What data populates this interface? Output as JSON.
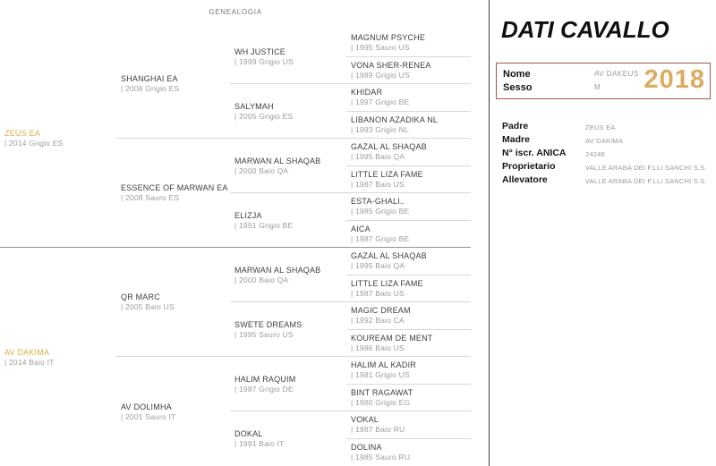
{
  "colors": {
    "highlight_gold": "#dcae47",
    "year_gold": "#dcab60",
    "id_box_border": "#a8544b",
    "divider_light": "#d8d8d8",
    "divider_mid": "#949494"
  },
  "genealogy": {
    "header": "GENEALOGIA",
    "generations": [
      {
        "span": 8,
        "items": [
          {
            "name": "ZEUS EA",
            "info": "| 2014 Grigio ES",
            "highlight": true
          },
          {
            "name": "AV DAKIMA",
            "info": "| 2014 Baio IT",
            "highlight": true
          }
        ]
      },
      {
        "span": 4,
        "items": [
          {
            "name": "SHANGHAI EA",
            "info": "| 2008 Grigio ES"
          },
          {
            "name": "ESSENCE OF MARWAN EA",
            "info": "| 2008 Sauro ES"
          },
          {
            "name": "QR MARC",
            "info": "| 2005 Baio US"
          },
          {
            "name": "AV DOLIMHA",
            "info": "| 2001 Sauro IT"
          }
        ]
      },
      {
        "span": 2,
        "items": [
          {
            "name": "WH JUSTICE",
            "info": "| 1999 Grigio US"
          },
          {
            "name": "SALYMAH",
            "info": "| 2005 Grigio ES"
          },
          {
            "name": "MARWAN AL SHAQAB",
            "info": "| 2000 Baio QA"
          },
          {
            "name": "ELIZJA",
            "info": "| 1991 Grigio BE"
          },
          {
            "name": "MARWAN AL SHAQAB",
            "info": "| 2000 Baio QA"
          },
          {
            "name": "SWETE DREAMS",
            "info": "| 1995 Sauro US"
          },
          {
            "name": "HALIM RAQUIM",
            "info": "| 1987 Grigio DE"
          },
          {
            "name": "DOKAL",
            "info": "| 1991 Baio IT"
          }
        ]
      },
      {
        "span": 1,
        "items": [
          {
            "name": "MAGNUM PSYCHE",
            "info": "| 1995 Sauro US"
          },
          {
            "name": "VONA SHER-RENEA",
            "info": "| 1989 Grigio US"
          },
          {
            "name": "KHIDAR",
            "info": "| 1997 Grigio BE"
          },
          {
            "name": "LIBANON AZADIKA NL",
            "info": "| 1993 Grigio NL"
          },
          {
            "name": "GAZAL AL SHAQAB",
            "info": "| 1995 Baio QA"
          },
          {
            "name": "LITTLE LIZA FAME",
            "info": "| 1987 Baio US"
          },
          {
            "name": "ESTA-GHALI..",
            "info": "| 1985 Grigio BE"
          },
          {
            "name": "AICA",
            "info": "| 1987 Grigio BE"
          },
          {
            "name": "GAZAL AL SHAQAB",
            "info": "| 1995 Baio QA"
          },
          {
            "name": "LITTLE LIZA FAME",
            "info": "| 1987 Baio US"
          },
          {
            "name": "MAGIC DREAM",
            "info": "| 1992 Baio CA"
          },
          {
            "name": "KOUREAM DE MENT",
            "info": "| 1986 Baio US"
          },
          {
            "name": "HALIM AL KADIR",
            "info": "| 1981 Grigio US"
          },
          {
            "name": "BINT RAGAWAT",
            "info": "| 1980 Grigio EG"
          },
          {
            "name": "VOKAL",
            "info": "| 1987 Baio RU"
          },
          {
            "name": "DOLINA",
            "info": "| 1985 Sauro RU"
          }
        ]
      }
    ]
  },
  "panel": {
    "title": "DATI CAVALLO",
    "id_box": {
      "name_label": "Nome",
      "name_value": "AV DAKEUS",
      "sex_label": "Sesso",
      "sex_value": "M",
      "year": "2018"
    },
    "details": [
      {
        "label": "Padre",
        "value": "ZEUS EA"
      },
      {
        "label": "Madre",
        "value": "AV DAKIMA"
      },
      {
        "label": "N° iscr. ANICA",
        "value": "24246"
      },
      {
        "label": "Proprietario",
        "value": "VALLE ARABA DEI F.LLI SANCHI S.S."
      },
      {
        "label": "Allevatore",
        "value": "VALLE ARABA DEI F.LLI SANCHI S.S."
      }
    ]
  }
}
